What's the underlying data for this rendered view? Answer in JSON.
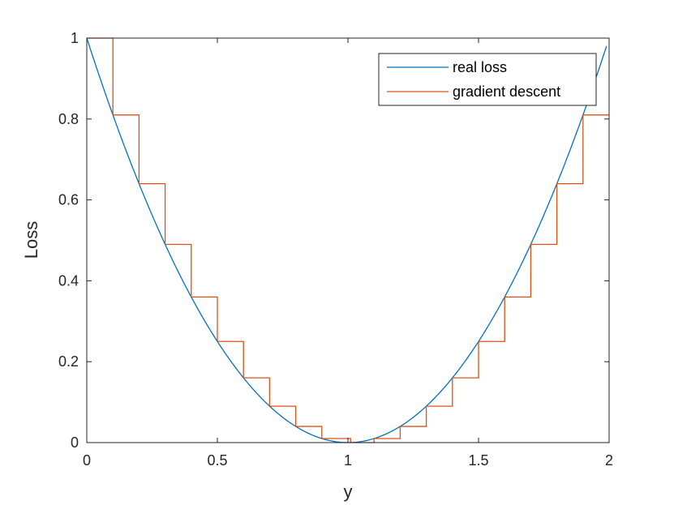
{
  "chart_data": {
    "type": "line",
    "xlabel": "y",
    "ylabel": "Loss",
    "xlim": [
      0,
      2
    ],
    "ylim": [
      0,
      1
    ],
    "x_ticks": [
      "0",
      "0.5",
      "1",
      "1.5",
      "2"
    ],
    "y_ticks": [
      "0",
      "0.2",
      "0.4",
      "0.6",
      "0.8",
      "1"
    ],
    "grid": false,
    "legend_position": "top-right",
    "series": [
      {
        "name": "real loss",
        "color": "#0072BD",
        "style": "smooth",
        "function": "(y-1)^2",
        "x": [
          0,
          0.1,
          0.2,
          0.3,
          0.4,
          0.5,
          0.6,
          0.7,
          0.8,
          0.9,
          1.0,
          1.1,
          1.2,
          1.3,
          1.4,
          1.5,
          1.6,
          1.7,
          1.8,
          1.9,
          1.99
        ],
        "y": [
          1.0,
          0.81,
          0.64,
          0.49,
          0.36,
          0.25,
          0.16,
          0.09,
          0.04,
          0.01,
          0.0,
          0.01,
          0.04,
          0.09,
          0.16,
          0.25,
          0.36,
          0.49,
          0.64,
          0.81,
          0.98
        ]
      },
      {
        "name": "gradient descent",
        "color": "#D95319",
        "style": "step",
        "x": [
          0,
          0.09,
          0.1,
          0.2,
          0.3,
          0.4,
          0.5,
          0.6,
          0.7,
          0.8,
          0.9,
          1.0,
          1.01,
          1.09,
          1.1,
          1.2,
          1.3,
          1.4,
          1.5,
          1.6,
          1.7,
          1.8,
          1.9,
          2.0
        ],
        "y": [
          1.0,
          1.0,
          0.81,
          0.64,
          0.49,
          0.36,
          0.25,
          0.16,
          0.09,
          0.04,
          0.01,
          0.01,
          0.0,
          0.0,
          0.01,
          0.04,
          0.09,
          0.16,
          0.25,
          0.36,
          0.49,
          0.64,
          0.81,
          0.81
        ]
      }
    ]
  }
}
